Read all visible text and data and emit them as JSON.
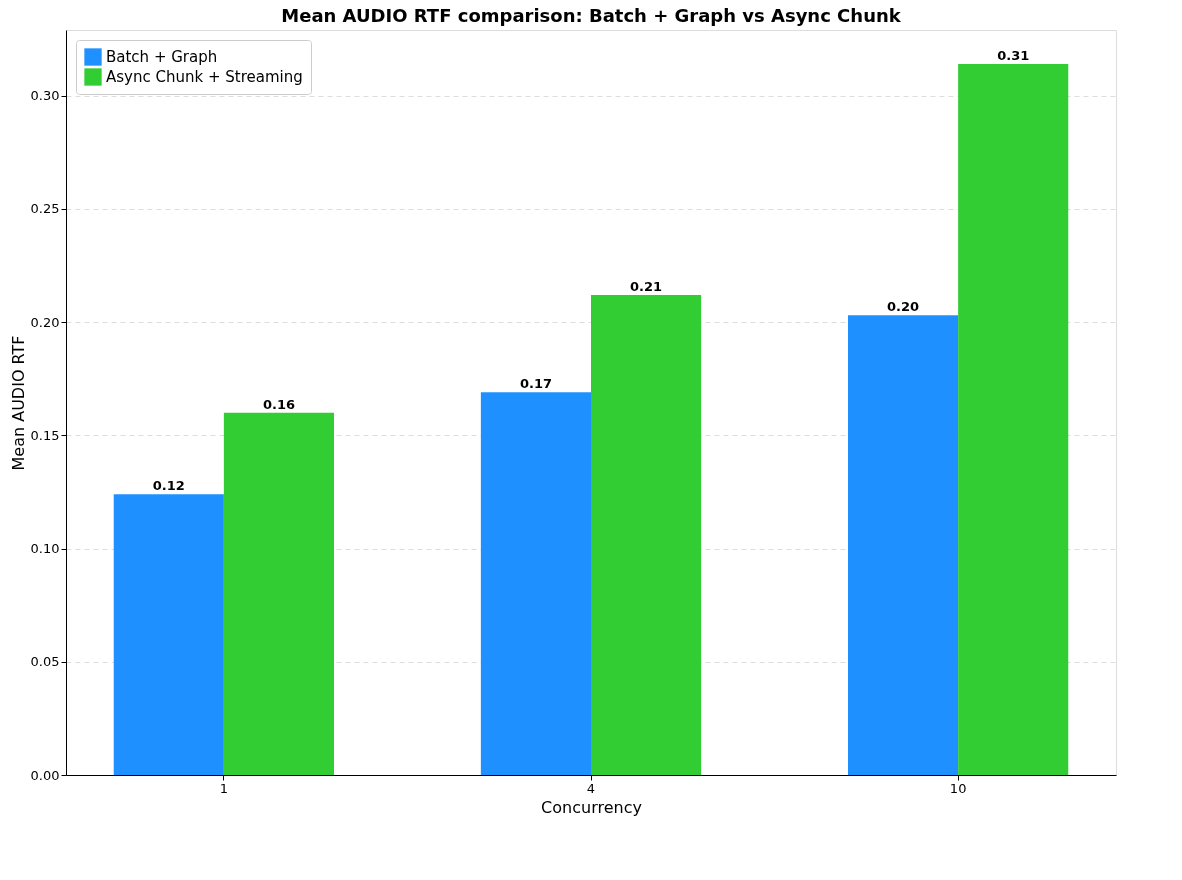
{
  "chart_data": {
    "type": "bar",
    "title": "Mean AUDIO RTF comparison: Batch + Graph vs Async Chunk",
    "xlabel": "Concurrency",
    "ylabel": "Mean AUDIO RTF",
    "categories": [
      "1",
      "4",
      "10"
    ],
    "series": [
      {
        "name": "Batch + Graph",
        "color": "#1e90ff",
        "values": [
          0.124,
          0.169,
          0.203
        ],
        "value_labels": [
          "0.12",
          "0.17",
          "0.20"
        ]
      },
      {
        "name": "Async Chunk + Streaming",
        "color": "#32cd32",
        "values": [
          0.16,
          0.212,
          0.314
        ],
        "value_labels": [
          "0.16",
          "0.21",
          "0.31"
        ]
      }
    ],
    "ylim": [
      0,
      0.329
    ],
    "yticks": [
      {
        "value": 0,
        "label": "0.00"
      },
      {
        "value": 0.05,
        "label": "0.05"
      },
      {
        "value": 0.1,
        "label": "0.10"
      },
      {
        "value": 0.15,
        "label": "0.15"
      },
      {
        "value": 0.2,
        "label": "0.20"
      },
      {
        "value": 0.25,
        "label": "0.25"
      },
      {
        "value": 0.3,
        "label": "0.30"
      }
    ],
    "grid": "y",
    "legend": "top left"
  }
}
